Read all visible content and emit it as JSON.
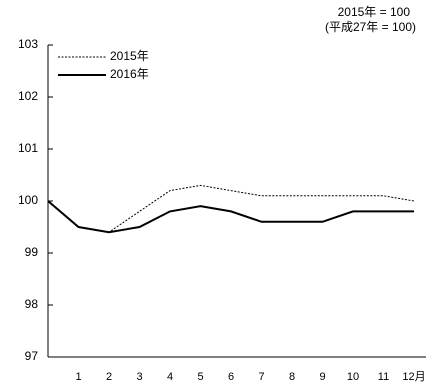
{
  "chart_data": {
    "type": "line",
    "annotations": [
      "2015年 = 100",
      "(平成27年 = 100)"
    ],
    "categories": [
      null,
      "1",
      "2",
      "3",
      "4",
      "5",
      "6",
      "7",
      "8",
      "9",
      "10",
      "11",
      "12月"
    ],
    "series": [
      {
        "name": "2015年",
        "color": "#000000",
        "style": "dashed",
        "values": [
          100,
          99.5,
          99.4,
          99.8,
          100.2,
          100.3,
          100.2,
          100.1,
          100.1,
          100.1,
          100.1,
          100.1,
          100.0
        ]
      },
      {
        "name": "2016年",
        "color": "#000000",
        "style": "solid",
        "values": [
          100,
          99.5,
          99.4,
          99.5,
          99.8,
          99.9,
          99.8,
          99.6,
          99.6,
          99.6,
          99.8,
          99.8,
          99.8
        ]
      }
    ],
    "ylim": [
      97,
      103
    ],
    "yticks": [
      97,
      98,
      99,
      100,
      101,
      102,
      103
    ],
    "legend": "upper left",
    "grid": false
  }
}
